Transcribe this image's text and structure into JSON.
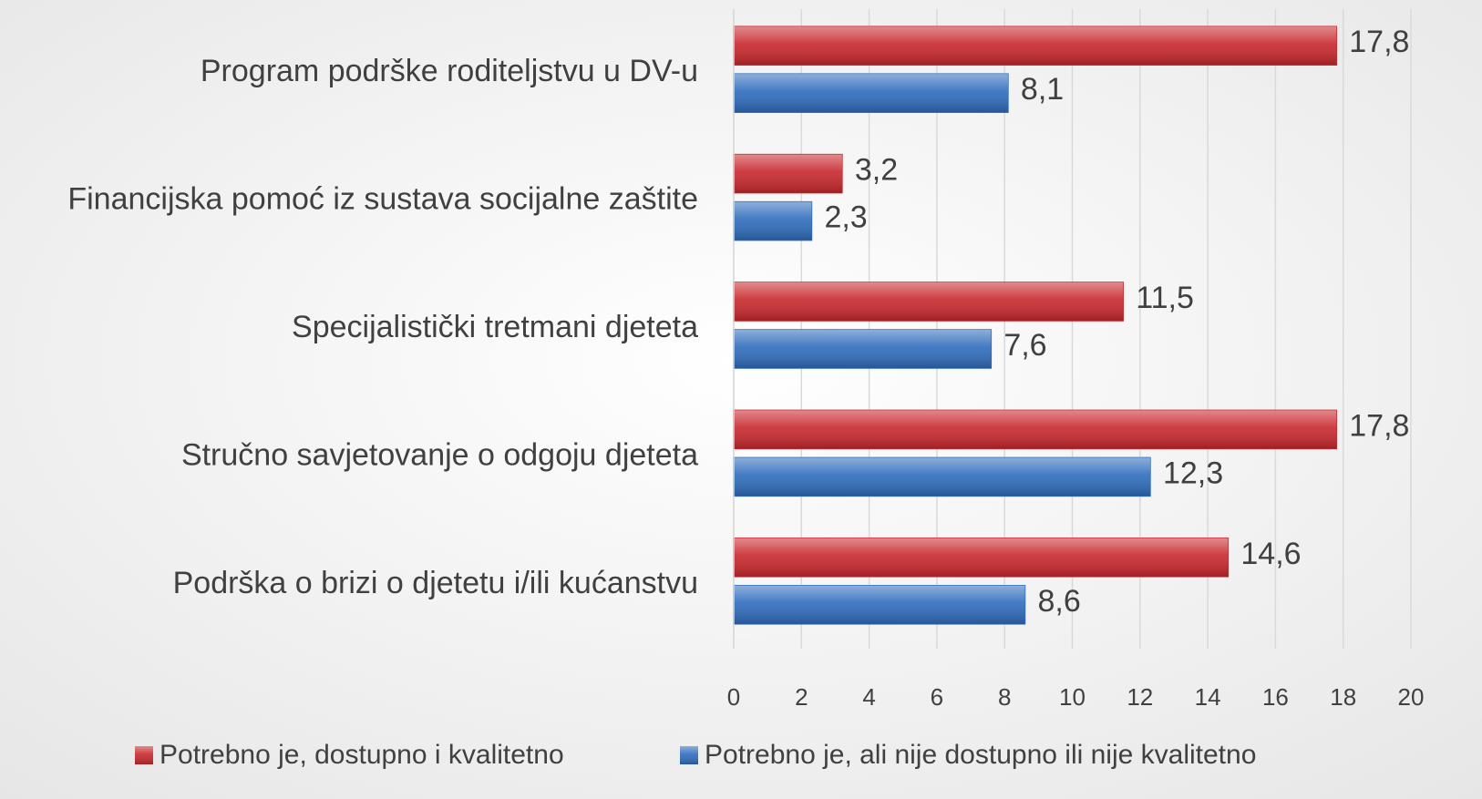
{
  "chart_data": {
    "type": "hbar",
    "categories": [
      "Program podrške roditeljstvu u DV-u",
      "Financijska pomoć iz sustava socijalne zaštite",
      "Specijalistički tretmani djeteta",
      "Stručno savjetovanje o odgoju djeteta",
      "Podrška o brizi o djetetu i/ili kućanstvu"
    ],
    "series": [
      {
        "name": "Potrebno je, dostupno i kvalitetno",
        "color": "#c8282d",
        "values": [
          17.8,
          3.2,
          11.5,
          17.8,
          14.6
        ],
        "value_labels": [
          "17,8",
          "3,2",
          "11,5",
          "17,8",
          "14,6"
        ]
      },
      {
        "name": "Potrebno je, ali nije dostupno ili nije kvalitetno",
        "color": "#2f6cbc",
        "values": [
          8.1,
          2.3,
          7.6,
          12.3,
          8.6
        ],
        "value_labels": [
          "8,1",
          "2,3",
          "7,6",
          "12,3",
          "8,6"
        ]
      }
    ],
    "xlim": [
      0,
      20
    ],
    "xticks": [
      0,
      2,
      4,
      6,
      8,
      10,
      12,
      14,
      16,
      18,
      20
    ],
    "grid": true,
    "legend": "bottom"
  }
}
